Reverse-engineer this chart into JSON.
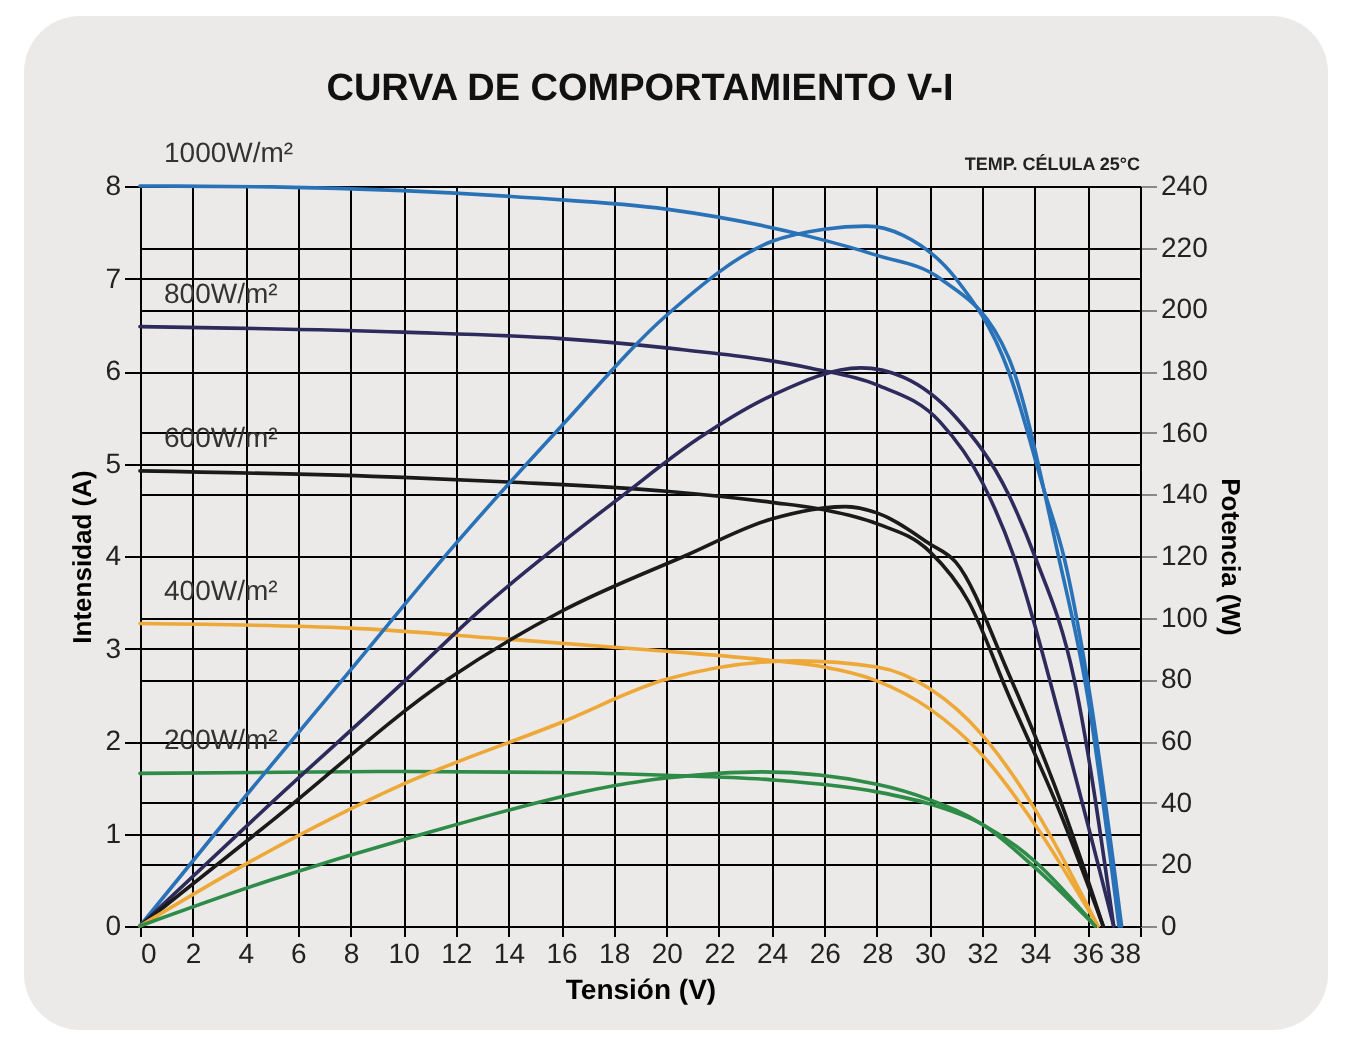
{
  "chart_data": {
    "type": "line",
    "title": "CURVA DE COMPORTAMIENTO V-I",
    "subtitle": "TEMP. CÉLULA  25°C",
    "xlabel": "Tensión (V)",
    "ylabel": "Intensidad (A)",
    "y2label": "Potencia (W)",
    "xlim": [
      0,
      38
    ],
    "xticks": [
      0,
      2,
      4,
      6,
      8,
      10,
      12,
      14,
      16,
      18,
      20,
      22,
      24,
      26,
      28,
      30,
      32,
      34,
      36,
      38
    ],
    "ylim": [
      0,
      8
    ],
    "yticks": [
      0,
      1,
      2,
      3,
      4,
      5,
      6,
      7,
      8
    ],
    "y2lim": [
      0,
      240
    ],
    "y2ticks": [
      0,
      20,
      40,
      60,
      80,
      100,
      120,
      140,
      160,
      180,
      200,
      220,
      240
    ],
    "grid": true,
    "series": [
      {
        "name": "1000W/m²",
        "color": "#2a72b8",
        "x": [
          0,
          5,
          10,
          15,
          20,
          25.5,
          28,
          30.4,
          33,
          34.9,
          36,
          37.2
        ],
        "values": [
          8.0,
          7.99,
          7.95,
          7.87,
          7.75,
          7.45,
          7.25,
          7.0,
          6.15,
          4.0,
          2.5,
          0
        ]
      },
      {
        "name": "800W/m²",
        "color": "#2d2a5c",
        "x": [
          0,
          10,
          16,
          20,
          25.5,
          28,
          30.4,
          32,
          33.2,
          35,
          37
        ],
        "values": [
          6.48,
          6.42,
          6.35,
          6.25,
          6.03,
          5.85,
          5.45,
          4.8,
          4.0,
          2.2,
          0
        ]
      },
      {
        "name": "600W/m²",
        "color": "#1a1a1a",
        "x": [
          0,
          10,
          14,
          20,
          24,
          26,
          28,
          30,
          31.5,
          33,
          35,
          36.6
        ],
        "values": [
          4.92,
          4.85,
          4.8,
          4.7,
          4.58,
          4.5,
          4.35,
          4.05,
          3.5,
          2.5,
          1.2,
          0
        ]
      },
      {
        "name": "400W/m²",
        "color": "#eea838",
        "x": [
          0,
          8,
          14,
          20,
          24,
          26,
          28,
          30,
          32,
          34,
          36.4
        ],
        "values": [
          3.27,
          3.22,
          3.1,
          2.97,
          2.87,
          2.8,
          2.65,
          2.35,
          1.85,
          1.1,
          0
        ]
      },
      {
        "name": "200W/m²",
        "color": "#2e8b48",
        "x": [
          0,
          10,
          16,
          20,
          24,
          28,
          30,
          32,
          34,
          36.3
        ],
        "values": [
          1.65,
          1.67,
          1.66,
          1.63,
          1.58,
          1.45,
          1.32,
          1.1,
          0.7,
          0
        ]
      },
      {
        "color": "#2a72b8",
        "axis": "y2",
        "x": [
          0,
          4,
          8,
          12,
          16,
          20,
          24,
          26,
          27.6,
          29,
          31,
          33,
          34.4,
          35.1,
          36,
          37.3
        ],
        "values": [
          0,
          42,
          83,
          124,
          162,
          198,
          222,
          226,
          227,
          224,
          210,
          180,
          140,
          120,
          80,
          0
        ]
      },
      {
        "color": "#2d2a5c",
        "axis": "y2",
        "x": [
          0,
          5,
          10,
          13,
          18.4,
          21.2,
          24,
          27.4,
          29,
          31,
          33,
          34,
          35.5,
          37
        ],
        "values": [
          0,
          40,
          79,
          103,
          140,
          158,
          172,
          181,
          178,
          165,
          140,
          120,
          80,
          0
        ]
      },
      {
        "color": "#1a1a1a",
        "axis": "y2",
        "x": [
          0,
          5,
          11.7,
          16,
          20.7,
          24,
          26.8,
          28,
          30,
          31,
          33,
          35,
          36.6
        ],
        "values": [
          0,
          34,
          80,
          102,
          120,
          132,
          136,
          134,
          124,
          118,
          82,
          40,
          0
        ]
      },
      {
        "color": "#eea838",
        "axis": "y2",
        "x": [
          0,
          4,
          10,
          16,
          20,
          25,
          28,
          30,
          32,
          34,
          36.4
        ],
        "values": [
          0,
          20,
          46,
          66,
          80,
          86,
          84,
          77,
          62,
          38,
          0
        ]
      },
      {
        "color": "#2e8b48",
        "axis": "y2",
        "x": [
          0,
          5,
          10,
          20,
          23.6,
          28,
          30,
          32,
          34,
          36.3
        ],
        "values": [
          0,
          15,
          28,
          48,
          50,
          46,
          41,
          33,
          19,
          0
        ]
      }
    ]
  }
}
